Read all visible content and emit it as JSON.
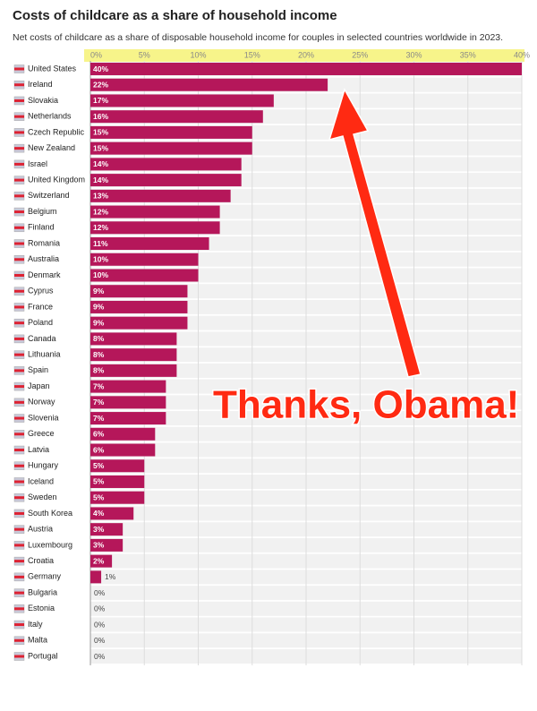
{
  "chart_data": {
    "type": "bar",
    "orientation": "horizontal",
    "title": "Costs of childcare as a share of household income",
    "subtitle": "Net costs of childcare as a share of disposable household income for couples in selected countries worldwide in 2023.",
    "annotation": "Thanks, Obama!",
    "categories": [
      "United States",
      "Ireland",
      "Slovakia",
      "Netherlands",
      "Czech Republic",
      "New Zealand",
      "Israel",
      "United Kingdom",
      "Switzerland",
      "Belgium",
      "Finland",
      "Romania",
      "Australia",
      "Denmark",
      "Cyprus",
      "France",
      "Poland",
      "Canada",
      "Lithuania",
      "Spain",
      "Japan",
      "Norway",
      "Slovenia",
      "Greece",
      "Latvia",
      "Hungary",
      "Iceland",
      "Sweden",
      "South Korea",
      "Austria",
      "Luxembourg",
      "Croatia",
      "Germany",
      "Bulgaria",
      "Estonia",
      "Italy",
      "Malta",
      "Portugal"
    ],
    "values": [
      40,
      22,
      17,
      16,
      15,
      15,
      14,
      14,
      13,
      12,
      12,
      11,
      10,
      10,
      9,
      9,
      9,
      8,
      8,
      8,
      7,
      7,
      7,
      6,
      6,
      5,
      5,
      5,
      4,
      3,
      3,
      2,
      1,
      0,
      0,
      0,
      0,
      0
    ],
    "value_labels": [
      "40%",
      "22%",
      "17%",
      "16%",
      "15%",
      "15%",
      "14%",
      "14%",
      "13%",
      "12%",
      "12%",
      "11%",
      "10%",
      "10%",
      "9%",
      "9%",
      "9%",
      "8%",
      "8%",
      "8%",
      "7%",
      "7%",
      "7%",
      "6%",
      "6%",
      "5%",
      "5%",
      "5%",
      "4%",
      "3%",
      "3%",
      "2%",
      "1%",
      "0%",
      "0%",
      "0%",
      "0%",
      "0%"
    ],
    "color": "#b5175a",
    "xlim": [
      0,
      40
    ],
    "xticks": [
      {
        "value": 0,
        "label": "0%"
      },
      {
        "value": 5,
        "label": "5%"
      },
      {
        "value": 10,
        "label": "10%"
      },
      {
        "value": 15,
        "label": "15%"
      },
      {
        "value": 20,
        "label": "20%"
      },
      {
        "value": 25,
        "label": "25%"
      },
      {
        "value": 30,
        "label": "30%"
      },
      {
        "value": 35,
        "label": "35%"
      },
      {
        "value": 40,
        "label": "40%"
      }
    ],
    "grid": true
  }
}
